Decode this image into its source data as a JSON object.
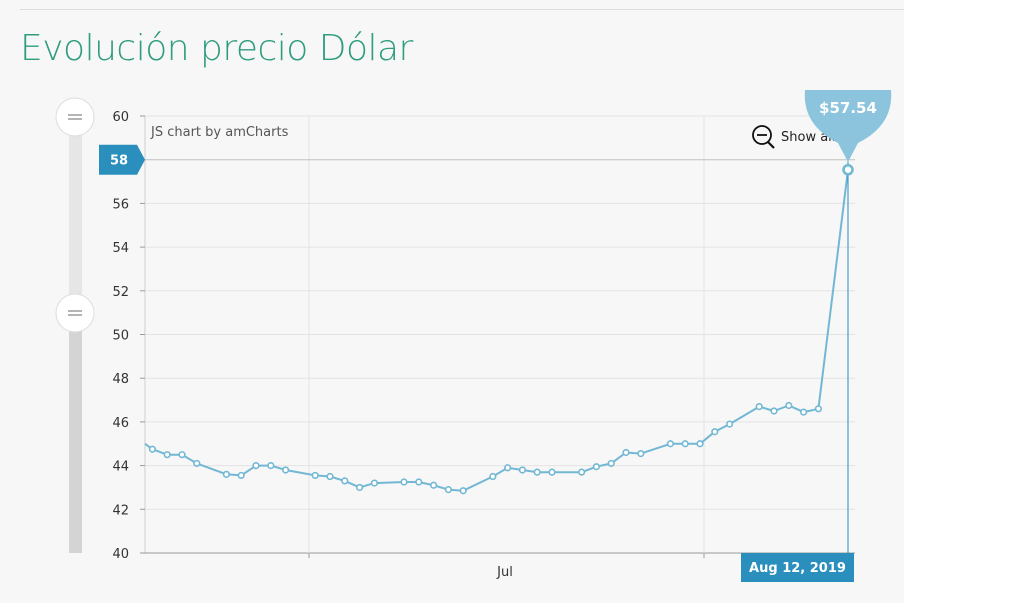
{
  "page": {
    "title": "Evolución precio Dólar"
  },
  "chart_data": {
    "type": "line",
    "credit": "JS chart by amCharts",
    "show_all_label": "Show all",
    "ylim": [
      40,
      60
    ],
    "yticks": [
      40,
      42,
      44,
      46,
      48,
      50,
      52,
      54,
      56,
      58,
      60
    ],
    "x_tick_labels": [
      "Jul"
    ],
    "cursor_value_label": "58",
    "cursor_date_label": "Aug 12, 2019",
    "balloon_text": "$57.54",
    "grid": true,
    "series": [
      {
        "color": "#72b7d4",
        "values": [
          45.0,
          44.75,
          44.5,
          44.5,
          44.1,
          43.6,
          43.55,
          44.0,
          44.0,
          43.8,
          43.55,
          43.5,
          43.3,
          43.0,
          43.2,
          43.25,
          43.25,
          43.1,
          42.9,
          42.85,
          43.5,
          43.9,
          43.8,
          43.7,
          43.7,
          43.7,
          43.95,
          44.1,
          44.6,
          44.55,
          45.0,
          45.0,
          45.0,
          45.55,
          45.9,
          46.7,
          46.5,
          46.75,
          46.45,
          46.6,
          57.54
        ],
        "x_index": [
          0,
          1,
          3,
          5,
          7,
          11,
          13,
          15,
          17,
          19,
          23,
          25,
          27,
          29,
          31,
          35,
          37,
          39,
          41,
          43,
          47,
          49,
          51,
          53,
          55,
          59,
          61,
          63,
          65,
          67,
          71,
          73,
          75,
          77,
          79,
          83,
          85,
          87,
          89,
          91,
          95
        ]
      }
    ],
    "colors": {
      "line": "#72b7d4",
      "accent": "#2a8fbd",
      "title": "#2d9c7f",
      "grid": "#e3e3e3"
    },
    "icons": [
      "zoom-out-icon",
      "grip-icon"
    ]
  }
}
